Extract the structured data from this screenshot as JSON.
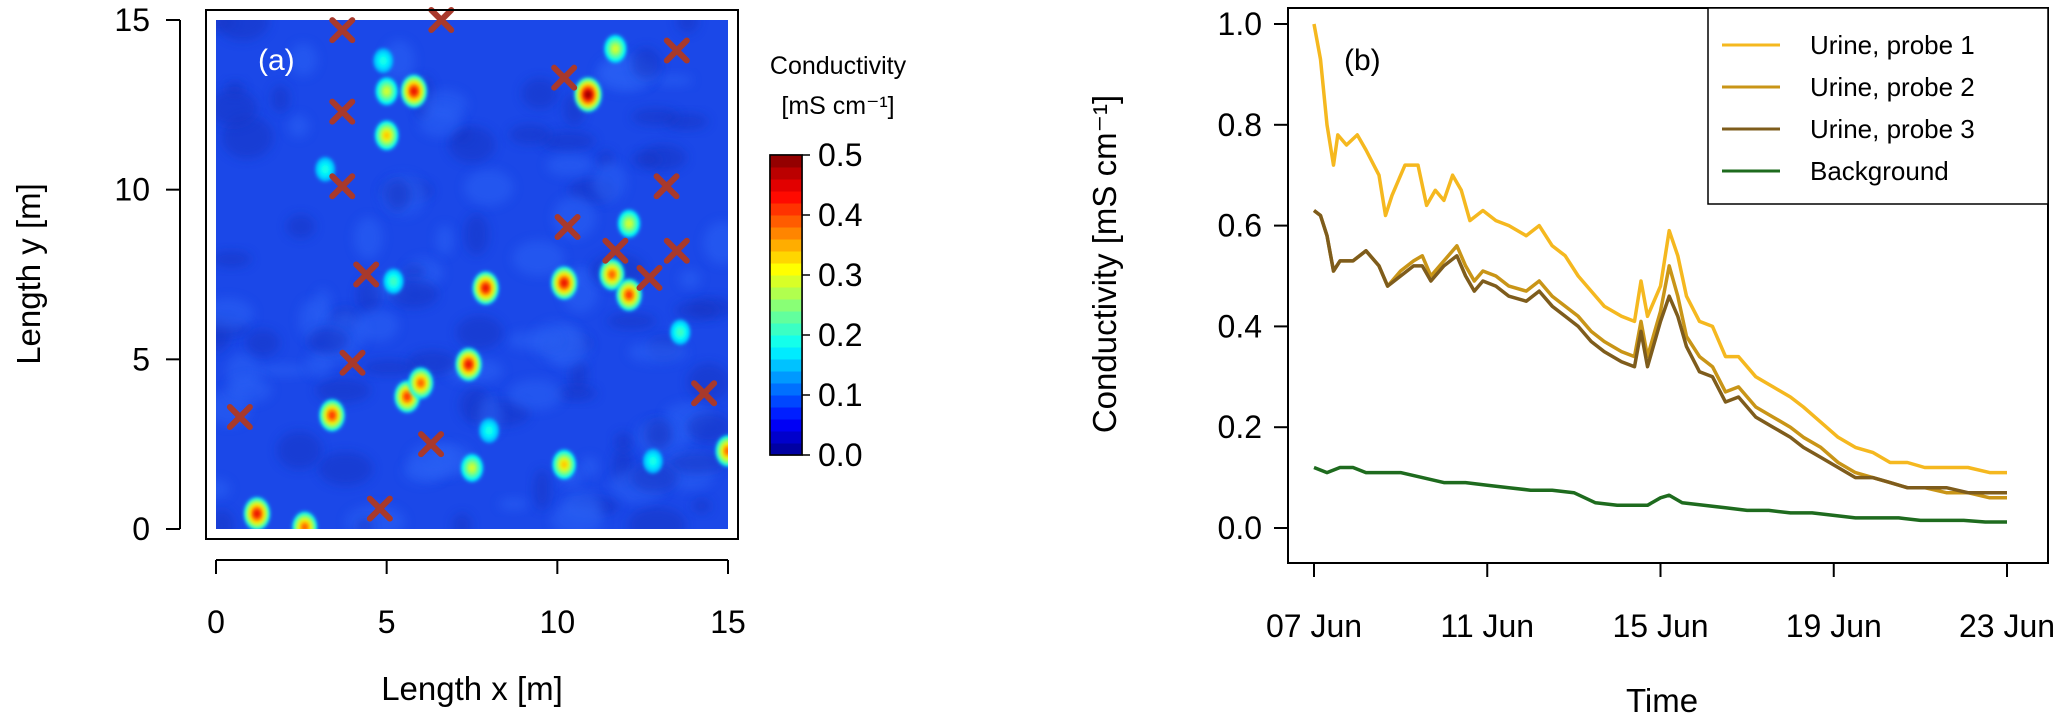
{
  "chart_data": [
    {
      "panel_label": "(a)",
      "type": "heatmap",
      "xlabel": "Length x [m]",
      "ylabel": "Length y [m]",
      "xlim": [
        0,
        15
      ],
      "ylim": [
        0,
        15
      ],
      "xticks": [
        "0",
        "5",
        "10",
        "15"
      ],
      "yticks": [
        "0",
        "5",
        "10",
        "15"
      ],
      "background_value": 0.08,
      "colorbar": {
        "title_line1": "Conductivity",
        "title_line2": "[mS cm⁻¹]",
        "min": 0,
        "max": 0.5,
        "ticks": [
          "0.0",
          "0.1",
          "0.2",
          "0.3",
          "0.4",
          "0.5"
        ]
      },
      "hotspots": [
        {
          "x": 1.2,
          "y": 0.45,
          "v": 0.45
        },
        {
          "x": 2.6,
          "y": 0.05,
          "v": 0.4
        },
        {
          "x": 3.4,
          "y": 3.35,
          "v": 0.42
        },
        {
          "x": 5.6,
          "y": 3.9,
          "v": 0.42
        },
        {
          "x": 6.0,
          "y": 4.3,
          "v": 0.4
        },
        {
          "x": 7.4,
          "y": 4.85,
          "v": 0.45
        },
        {
          "x": 7.9,
          "y": 7.1,
          "v": 0.45
        },
        {
          "x": 10.2,
          "y": 7.25,
          "v": 0.45
        },
        {
          "x": 11.6,
          "y": 7.5,
          "v": 0.4
        },
        {
          "x": 12.1,
          "y": 6.9,
          "v": 0.42
        },
        {
          "x": 12.1,
          "y": 9.0,
          "v": 0.3
        },
        {
          "x": 5.0,
          "y": 11.6,
          "v": 0.35
        },
        {
          "x": 5.0,
          "y": 12.9,
          "v": 0.3
        },
        {
          "x": 5.8,
          "y": 12.9,
          "v": 0.45
        },
        {
          "x": 10.9,
          "y": 12.8,
          "v": 0.5
        },
        {
          "x": 11.7,
          "y": 14.15,
          "v": 0.3
        },
        {
          "x": 4.9,
          "y": 13.8,
          "v": 0.2
        },
        {
          "x": 10.2,
          "y": 1.9,
          "v": 0.35
        },
        {
          "x": 15.0,
          "y": 2.3,
          "v": 0.4
        },
        {
          "x": 12.8,
          "y": 2.0,
          "v": 0.2
        },
        {
          "x": 7.5,
          "y": 1.8,
          "v": 0.3
        },
        {
          "x": 5.2,
          "y": 7.3,
          "v": 0.22
        },
        {
          "x": 3.2,
          "y": 10.6,
          "v": 0.2
        },
        {
          "x": 13.6,
          "y": 5.8,
          "v": 0.22
        },
        {
          "x": 8.0,
          "y": 2.9,
          "v": 0.2
        }
      ],
      "markers": [
        {
          "x": 3.7,
          "y": 14.7
        },
        {
          "x": 6.6,
          "y": 15.0
        },
        {
          "x": 10.2,
          "y": 13.3
        },
        {
          "x": 13.5,
          "y": 14.1
        },
        {
          "x": 3.7,
          "y": 12.3
        },
        {
          "x": 3.7,
          "y": 10.1
        },
        {
          "x": 13.2,
          "y": 10.1
        },
        {
          "x": 10.3,
          "y": 8.9
        },
        {
          "x": 11.7,
          "y": 8.2
        },
        {
          "x": 13.5,
          "y": 8.2
        },
        {
          "x": 4.4,
          "y": 7.5
        },
        {
          "x": 12.7,
          "y": 7.4
        },
        {
          "x": 4.0,
          "y": 4.9
        },
        {
          "x": 14.3,
          "y": 4.0
        },
        {
          "x": 0.7,
          "y": 3.3
        },
        {
          "x": 6.3,
          "y": 2.5
        },
        {
          "x": 4.8,
          "y": 0.6
        }
      ]
    },
    {
      "panel_label": "(b)",
      "type": "line",
      "xlabel": "Time",
      "ylabel": "Conductivity [mS cm⁻¹]",
      "ylim": [
        0,
        1.0
      ],
      "yticks": [
        "0.0",
        "0.2",
        "0.4",
        "0.6",
        "0.8",
        "1.0"
      ],
      "xticks": [
        "07 Jun",
        "11 Jun",
        "15 Jun",
        "19 Jun",
        "23 Jun"
      ],
      "xlim_days": [
        7,
        23
      ],
      "legend_position": "top-right",
      "series": [
        {
          "name": "Urine, probe 1",
          "color": "#F5B81F",
          "points": [
            [
              7.0,
              1.0
            ],
            [
              7.15,
              0.93
            ],
            [
              7.3,
              0.8
            ],
            [
              7.45,
              0.72
            ],
            [
              7.55,
              0.78
            ],
            [
              7.75,
              0.76
            ],
            [
              8.0,
              0.78
            ],
            [
              8.2,
              0.75
            ],
            [
              8.5,
              0.7
            ],
            [
              8.65,
              0.62
            ],
            [
              8.8,
              0.66
            ],
            [
              9.1,
              0.72
            ],
            [
              9.4,
              0.72
            ],
            [
              9.6,
              0.64
            ],
            [
              9.8,
              0.67
            ],
            [
              10.0,
              0.65
            ],
            [
              10.2,
              0.7
            ],
            [
              10.4,
              0.67
            ],
            [
              10.6,
              0.61
            ],
            [
              10.9,
              0.63
            ],
            [
              11.2,
              0.61
            ],
            [
              11.5,
              0.6
            ],
            [
              11.9,
              0.58
            ],
            [
              12.2,
              0.6
            ],
            [
              12.5,
              0.56
            ],
            [
              12.8,
              0.54
            ],
            [
              13.1,
              0.5
            ],
            [
              13.4,
              0.47
            ],
            [
              13.7,
              0.44
            ],
            [
              14.1,
              0.42
            ],
            [
              14.4,
              0.41
            ],
            [
              14.55,
              0.49
            ],
            [
              14.7,
              0.42
            ],
            [
              15.0,
              0.48
            ],
            [
              15.2,
              0.59
            ],
            [
              15.4,
              0.54
            ],
            [
              15.6,
              0.46
            ],
            [
              15.9,
              0.41
            ],
            [
              16.2,
              0.4
            ],
            [
              16.5,
              0.34
            ],
            [
              16.8,
              0.34
            ],
            [
              17.2,
              0.3
            ],
            [
              17.6,
              0.28
            ],
            [
              18.0,
              0.26
            ],
            [
              18.3,
              0.24
            ],
            [
              18.7,
              0.21
            ],
            [
              19.1,
              0.18
            ],
            [
              19.5,
              0.16
            ],
            [
              19.9,
              0.15
            ],
            [
              20.3,
              0.13
            ],
            [
              20.7,
              0.13
            ],
            [
              21.1,
              0.12
            ],
            [
              21.6,
              0.12
            ],
            [
              22.1,
              0.12
            ],
            [
              22.6,
              0.11
            ],
            [
              23.0,
              0.11
            ]
          ]
        },
        {
          "name": "Urine, probe 2",
          "color": "#C99517",
          "points": [
            [
              7.0,
              0.63
            ],
            [
              7.15,
              0.62
            ],
            [
              7.3,
              0.58
            ],
            [
              7.45,
              0.51
            ],
            [
              7.6,
              0.53
            ],
            [
              7.9,
              0.53
            ],
            [
              8.2,
              0.55
            ],
            [
              8.5,
              0.52
            ],
            [
              8.7,
              0.48
            ],
            [
              9.0,
              0.51
            ],
            [
              9.3,
              0.53
            ],
            [
              9.5,
              0.54
            ],
            [
              9.7,
              0.5
            ],
            [
              10.0,
              0.53
            ],
            [
              10.3,
              0.56
            ],
            [
              10.5,
              0.52
            ],
            [
              10.7,
              0.49
            ],
            [
              10.9,
              0.51
            ],
            [
              11.2,
              0.5
            ],
            [
              11.5,
              0.48
            ],
            [
              11.9,
              0.47
            ],
            [
              12.2,
              0.49
            ],
            [
              12.5,
              0.46
            ],
            [
              12.8,
              0.44
            ],
            [
              13.1,
              0.42
            ],
            [
              13.4,
              0.39
            ],
            [
              13.7,
              0.37
            ],
            [
              14.1,
              0.35
            ],
            [
              14.4,
              0.34
            ],
            [
              14.55,
              0.41
            ],
            [
              14.7,
              0.34
            ],
            [
              15.0,
              0.43
            ],
            [
              15.2,
              0.52
            ],
            [
              15.4,
              0.46
            ],
            [
              15.6,
              0.38
            ],
            [
              15.9,
              0.34
            ],
            [
              16.2,
              0.32
            ],
            [
              16.5,
              0.27
            ],
            [
              16.8,
              0.28
            ],
            [
              17.2,
              0.24
            ],
            [
              17.6,
              0.22
            ],
            [
              18.0,
              0.2
            ],
            [
              18.3,
              0.18
            ],
            [
              18.7,
              0.16
            ],
            [
              19.1,
              0.13
            ],
            [
              19.5,
              0.11
            ],
            [
              19.9,
              0.1
            ],
            [
              20.3,
              0.09
            ],
            [
              20.7,
              0.08
            ],
            [
              21.1,
              0.08
            ],
            [
              21.6,
              0.07
            ],
            [
              22.1,
              0.07
            ],
            [
              22.6,
              0.06
            ],
            [
              23.0,
              0.06
            ]
          ]
        },
        {
          "name": "Urine, probe 3",
          "color": "#7E5C1C",
          "points": [
            [
              7.0,
              0.63
            ],
            [
              7.15,
              0.62
            ],
            [
              7.3,
              0.58
            ],
            [
              7.45,
              0.51
            ],
            [
              7.6,
              0.53
            ],
            [
              7.9,
              0.53
            ],
            [
              8.2,
              0.55
            ],
            [
              8.5,
              0.52
            ],
            [
              8.7,
              0.48
            ],
            [
              9.0,
              0.5
            ],
            [
              9.3,
              0.52
            ],
            [
              9.5,
              0.52
            ],
            [
              9.7,
              0.49
            ],
            [
              10.0,
              0.52
            ],
            [
              10.3,
              0.54
            ],
            [
              10.5,
              0.5
            ],
            [
              10.7,
              0.47
            ],
            [
              10.9,
              0.49
            ],
            [
              11.2,
              0.48
            ],
            [
              11.5,
              0.46
            ],
            [
              11.9,
              0.45
            ],
            [
              12.2,
              0.47
            ],
            [
              12.5,
              0.44
            ],
            [
              12.8,
              0.42
            ],
            [
              13.1,
              0.4
            ],
            [
              13.4,
              0.37
            ],
            [
              13.7,
              0.35
            ],
            [
              14.1,
              0.33
            ],
            [
              14.4,
              0.32
            ],
            [
              14.55,
              0.39
            ],
            [
              14.7,
              0.32
            ],
            [
              15.0,
              0.41
            ],
            [
              15.2,
              0.46
            ],
            [
              15.4,
              0.42
            ],
            [
              15.6,
              0.36
            ],
            [
              15.9,
              0.31
            ],
            [
              16.2,
              0.3
            ],
            [
              16.5,
              0.25
            ],
            [
              16.8,
              0.26
            ],
            [
              17.2,
              0.22
            ],
            [
              17.6,
              0.2
            ],
            [
              18.0,
              0.18
            ],
            [
              18.3,
              0.16
            ],
            [
              18.7,
              0.14
            ],
            [
              19.1,
              0.12
            ],
            [
              19.5,
              0.1
            ],
            [
              19.9,
              0.1
            ],
            [
              20.3,
              0.09
            ],
            [
              20.7,
              0.08
            ],
            [
              21.1,
              0.08
            ],
            [
              21.6,
              0.08
            ],
            [
              22.1,
              0.07
            ],
            [
              22.6,
              0.07
            ],
            [
              23.0,
              0.07
            ]
          ]
        },
        {
          "name": "Background",
          "color": "#1E6B1E",
          "points": [
            [
              7.0,
              0.12
            ],
            [
              7.3,
              0.11
            ],
            [
              7.6,
              0.12
            ],
            [
              7.9,
              0.12
            ],
            [
              8.2,
              0.11
            ],
            [
              8.6,
              0.11
            ],
            [
              9.0,
              0.11
            ],
            [
              9.5,
              0.1
            ],
            [
              10.0,
              0.09
            ],
            [
              10.5,
              0.09
            ],
            [
              11.0,
              0.085
            ],
            [
              11.5,
              0.08
            ],
            [
              12.0,
              0.075
            ],
            [
              12.5,
              0.075
            ],
            [
              13.0,
              0.07
            ],
            [
              13.5,
              0.05
            ],
            [
              14.0,
              0.045
            ],
            [
              14.4,
              0.045
            ],
            [
              14.7,
              0.045
            ],
            [
              15.0,
              0.06
            ],
            [
              15.2,
              0.065
            ],
            [
              15.5,
              0.05
            ],
            [
              16.0,
              0.045
            ],
            [
              16.5,
              0.04
            ],
            [
              17.0,
              0.035
            ],
            [
              17.5,
              0.035
            ],
            [
              18.0,
              0.03
            ],
            [
              18.5,
              0.03
            ],
            [
              19.0,
              0.025
            ],
            [
              19.5,
              0.02
            ],
            [
              20.0,
              0.02
            ],
            [
              20.5,
              0.02
            ],
            [
              21.0,
              0.015
            ],
            [
              21.5,
              0.015
            ],
            [
              22.0,
              0.015
            ],
            [
              22.5,
              0.012
            ],
            [
              23.0,
              0.012
            ]
          ]
        }
      ]
    }
  ]
}
